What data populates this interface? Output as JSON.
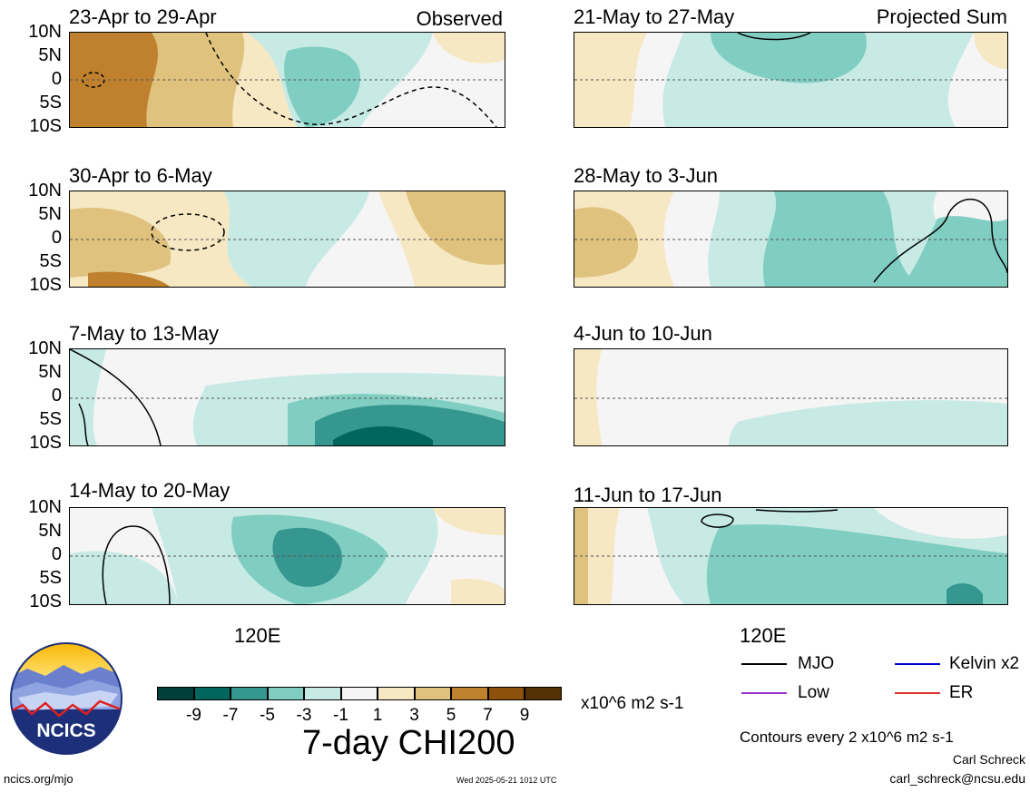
{
  "panels": [
    {
      "title": "23-Apr to 29-Apr",
      "tag": "Observed"
    },
    {
      "title": "21-May to 27-May",
      "tag": "Projected Sum"
    },
    {
      "title": "30-Apr to 6-May",
      "tag": ""
    },
    {
      "title": "28-May to 3-Jun",
      "tag": ""
    },
    {
      "title": "7-May to 13-May",
      "tag": ""
    },
    {
      "title": "4-Jun to 10-Jun",
      "tag": ""
    },
    {
      "title": "14-May to 20-May",
      "tag": ""
    },
    {
      "title": "11-Jun to 17-Jun",
      "tag": ""
    }
  ],
  "lat_labels": [
    "10N",
    "5N",
    "0",
    "5S",
    "10S"
  ],
  "lon_label": "120E",
  "colorbar": {
    "colors": [
      "#01403a",
      "#01665e",
      "#35978f",
      "#80cdc1",
      "#c7eae5",
      "#f5f5f5",
      "#f6e8c3",
      "#dfc27d",
      "#bf812d",
      "#8c510a",
      "#543005"
    ],
    "labels": [
      "-9",
      "-7",
      "-5",
      "-3",
      "-1",
      "1",
      "3",
      "5",
      "7",
      "9"
    ],
    "units": "x10^6 m2 s-1",
    "title": "7-day CHI200"
  },
  "legend": [
    {
      "label": "MJO",
      "color": "#000000"
    },
    {
      "label": "Kelvin x2",
      "color": "#0000cc"
    },
    {
      "label": "Low",
      "color": "#9932cc"
    },
    {
      "label": "ER",
      "color": "#e03030"
    }
  ],
  "contour_note": "Contours every 2 x10^6 m2 s-1",
  "author": "Carl Schreck",
  "email": "carl_schreck@ncsu.edu",
  "website": "ncics.org/mjo",
  "timestamp": "Wed 2025-05-21 1012 UTC",
  "logo_text": "NCICS"
}
